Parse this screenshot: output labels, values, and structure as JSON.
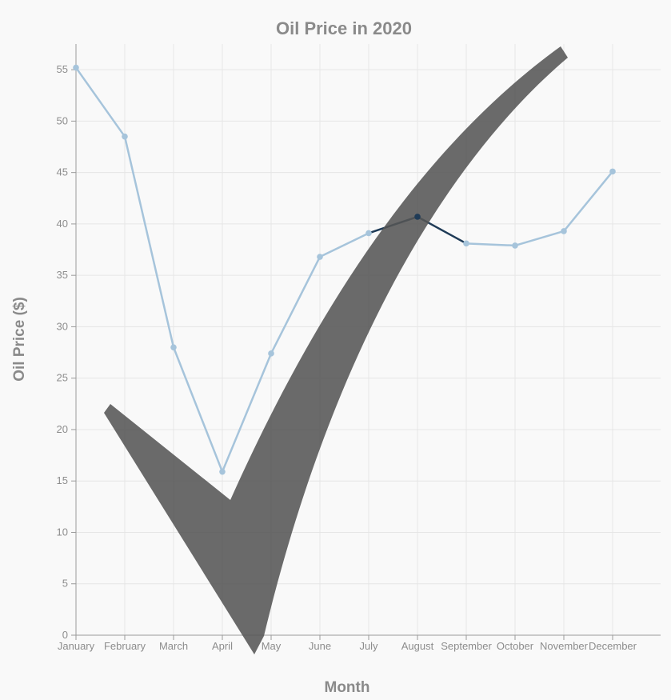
{
  "chart_data": {
    "type": "line",
    "title": "Oil Price in 2020",
    "xlabel": "Month",
    "ylabel": "Oil Price ($)",
    "categories": [
      "January",
      "February",
      "March",
      "April",
      "May",
      "June",
      "July",
      "August",
      "September",
      "October",
      "November",
      "December"
    ],
    "series": [
      {
        "values": [
          55.2,
          48.5,
          28.0,
          15.9,
          27.4,
          36.8,
          39.1,
          40.7,
          38.1,
          37.9,
          39.3,
          45.1
        ]
      }
    ],
    "highlight_index": 7,
    "ylim": [
      0,
      57.5
    ],
    "yticks": [
      0,
      5,
      10,
      15,
      20,
      25,
      30,
      35,
      40,
      45,
      50,
      55
    ],
    "grid": true,
    "colors": {
      "line": "#a6c4db",
      "highlight": "#1f3b57",
      "checkmark": "#555555"
    }
  }
}
